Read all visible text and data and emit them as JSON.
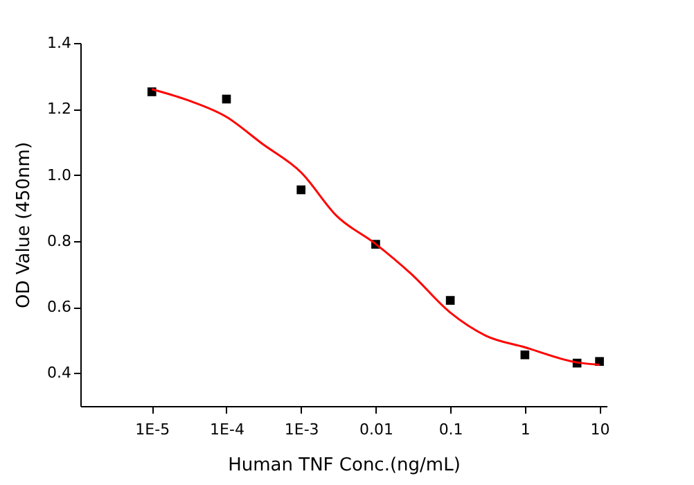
{
  "chart_data": {
    "type": "scatter",
    "xlabel": "Human TNF Conc.(ng/mL)",
    "ylabel": "OD Value (450nm)",
    "log": "x",
    "grid": false,
    "legend": false,
    "xlim": [
      1.1e-06,
      12.5
    ],
    "ylim": [
      0.3,
      1.4
    ],
    "xticks": [
      {
        "value": 1e-05,
        "label": "1E-5"
      },
      {
        "value": 0.0001,
        "label": "1E-4"
      },
      {
        "value": 0.001,
        "label": "1E-3"
      },
      0.01,
      0.1,
      1,
      10
    ],
    "yticks": [
      0.4,
      0.6,
      0.8,
      {
        "value": 1,
        "label": "1.0"
      },
      1.2,
      1.4
    ],
    "series": [
      {
        "marker": "square",
        "color": "#000000",
        "x": [
          1e-05,
          0.0001,
          0.001,
          0.01,
          0.1,
          1,
          5,
          10
        ],
        "values": [
          1.252,
          1.23,
          0.955,
          0.79,
          0.62,
          0.455,
          0.43,
          0.435
        ]
      },
      {
        "type": "line",
        "marker": "none",
        "line_style": "solid",
        "color": "#ff0000",
        "x": [
          1e-05,
          3e-05,
          0.0001,
          0.0003,
          0.001,
          0.003,
          0.01,
          0.03,
          0.1,
          0.3,
          1,
          5,
          10
        ],
        "values": [
          1.26,
          1.227,
          1.176,
          1.095,
          1.008,
          0.876,
          0.791,
          0.7,
          0.583,
          0.513,
          0.478,
          0.432,
          0.425
        ]
      }
    ]
  }
}
